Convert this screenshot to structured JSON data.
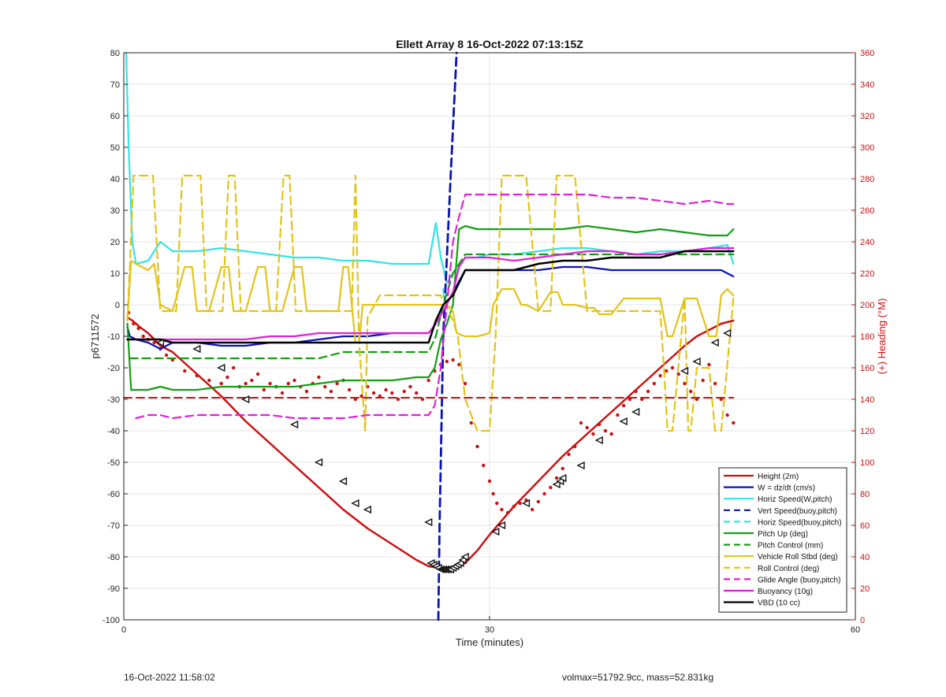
{
  "chart_data": {
    "type": "line",
    "title": "Ellett Array 8 16-Oct-2022 07:13:15Z",
    "xlabel": "Time (minutes)",
    "ylabel_left": "p6711572",
    "ylabel_right": "(+) Heading (°M)",
    "xlim": [
      0,
      60
    ],
    "ylim_left": [
      -100,
      80
    ],
    "ylim_right": [
      0,
      360
    ],
    "xticks": [
      0,
      30,
      60
    ],
    "yticks_left": [
      -100,
      -90,
      -80,
      -70,
      -60,
      -50,
      -40,
      -30,
      -20,
      -10,
      0,
      10,
      20,
      30,
      40,
      50,
      60,
      70,
      80
    ],
    "yticks_right": [
      0,
      20,
      40,
      60,
      80,
      100,
      120,
      140,
      160,
      180,
      200,
      220,
      240,
      260,
      280,
      300,
      320,
      340,
      360
    ],
    "grid": true,
    "legend_position": "bottom-right",
    "colors": {
      "red": "#cc1111",
      "blue": "#0a14b4",
      "cyan": "#33e4e4",
      "green": "#12a012",
      "yellow": "#e2c418",
      "magenta": "#e020d8",
      "black": "#000000"
    },
    "series": [
      {
        "name": "Height (2m)",
        "color": "red",
        "dash": false,
        "width": 2.5,
        "x": [
          0.3,
          0.7,
          1.3,
          2,
          3,
          4,
          6,
          8,
          10,
          12,
          14,
          16,
          18,
          20,
          22,
          24,
          25,
          25.8,
          26.5,
          27.2,
          28,
          29,
          30,
          32,
          34,
          36,
          38,
          40,
          42,
          44,
          46,
          47,
          48,
          49,
          50
        ],
        "y": [
          -4,
          -5,
          -7,
          -9,
          -13,
          -15,
          -22,
          -29,
          -37,
          -44,
          -51,
          -58,
          -65,
          -71,
          -76,
          -81,
          -83,
          -83.5,
          -84,
          -83.5,
          -82,
          -78,
          -73,
          -64,
          -56,
          -48,
          -41,
          -34,
          -27,
          -20,
          -13,
          -10,
          -8,
          -6,
          -5
        ]
      },
      {
        "name": "W = dz/dt (cm/s)",
        "color": "blue",
        "dash": false,
        "width": 2.2,
        "x": [
          0.3,
          0.5,
          1,
          2,
          3,
          4,
          6,
          8,
          10,
          12,
          14,
          16,
          18,
          20,
          22,
          24,
          25,
          25.6,
          26.2,
          27,
          28,
          29,
          30,
          32,
          34,
          36,
          38,
          40,
          42,
          44,
          46,
          48,
          49,
          50
        ],
        "y": [
          -7,
          -10,
          -11,
          -12,
          -14,
          -12,
          -12,
          -13,
          -13,
          -12,
          -12,
          -11,
          -10,
          -10,
          -9,
          -9,
          -9,
          -6,
          -2,
          4,
          11,
          11,
          11,
          11,
          11,
          12,
          12,
          11,
          11,
          11,
          11,
          11,
          11,
          9
        ]
      },
      {
        "name": "Horiz Speed(W,pitch)",
        "color": "cyan",
        "dash": false,
        "width": 2.2,
        "x": [
          0.2,
          0.4,
          0.7,
          1,
          2,
          3,
          4,
          6,
          8,
          10,
          12,
          14,
          16,
          18,
          20,
          22,
          24,
          25,
          25.6,
          26,
          26.5,
          27,
          27.5,
          28,
          29,
          30,
          32,
          34,
          36,
          38,
          40,
          42,
          44,
          46,
          48,
          49.5,
          50
        ],
        "y": [
          80,
          50,
          20,
          13,
          14,
          20,
          17,
          17,
          18,
          17,
          16,
          15,
          15,
          14,
          14,
          13,
          13,
          13,
          26,
          15,
          7,
          10,
          12,
          15,
          15,
          16,
          16,
          17,
          18,
          18,
          17,
          16,
          17,
          17,
          18,
          19,
          13
        ]
      },
      {
        "name": "Vert Speed(buoy,pitch)",
        "color": "blue",
        "dash": true,
        "width": 2.8,
        "x": [
          25.8,
          25.9,
          26.2,
          26.8,
          27.3
        ],
        "y": [
          -100,
          -70,
          -10,
          40,
          80
        ]
      },
      {
        "name": "Horiz Speed(buoy,pitch)",
        "color": "cyan",
        "dash": true,
        "width": 2,
        "x": [
          26.2,
          26.3
        ],
        "y": [
          5,
          0
        ]
      },
      {
        "name": "Pitch Up (deg)",
        "color": "green",
        "dash": false,
        "width": 2.2,
        "x": [
          0.3,
          0.6,
          1,
          2,
          3,
          4,
          6,
          8,
          10,
          12,
          14,
          16,
          18,
          20,
          22,
          24,
          25,
          25.5,
          26,
          26.5,
          27,
          27.5,
          28,
          29,
          30,
          32,
          34,
          36,
          38,
          40,
          42,
          44,
          46,
          48,
          49.5,
          50
        ],
        "y": [
          -6,
          -27,
          -27,
          -27,
          -26,
          -27,
          -27,
          -26,
          -26,
          -26,
          -26,
          -25,
          -24,
          -24,
          -24,
          -23,
          -23,
          -20,
          -11,
          -6,
          0,
          24,
          25,
          24,
          24,
          24,
          24,
          24,
          25,
          24,
          23,
          24,
          23,
          22,
          22,
          24
        ]
      },
      {
        "name": "Pitch Control (mm)",
        "color": "green",
        "dash": true,
        "width": 2.2,
        "x": [
          0.5,
          2,
          4,
          6,
          8,
          10,
          12,
          14,
          16,
          17,
          18,
          20,
          22,
          24,
          25,
          25.6,
          26.2,
          27,
          28,
          30,
          32,
          34,
          36,
          38,
          40,
          42,
          44,
          46,
          48,
          50
        ],
        "y": [
          -17,
          -17,
          -17,
          -17,
          -17,
          -17,
          -17,
          -17,
          -17,
          -16,
          -15,
          -15,
          -15,
          -15,
          -15,
          -10,
          0,
          10,
          16,
          16,
          16,
          16,
          16,
          16,
          16,
          16,
          16,
          16,
          16,
          16
        ]
      },
      {
        "name": "Vehicle Roll Stbd (deg)",
        "color": "yellow",
        "dash": false,
        "width": 2.2,
        "x": [
          0.3,
          0.6,
          1,
          2,
          2.5,
          3,
          4,
          5,
          5.6,
          6,
          7,
          8,
          8.6,
          9,
          10,
          11,
          11.6,
          12,
          13,
          14,
          14.6,
          15,
          16,
          17,
          17.6,
          18,
          18.4,
          19,
          19.3,
          19.6,
          20,
          21,
          22,
          23,
          24,
          25,
          26,
          26.5,
          27,
          27.3,
          28,
          29,
          30,
          30.3,
          31,
          32,
          32.6,
          33,
          34,
          35,
          35.6,
          36,
          37,
          38,
          38.6,
          39,
          40,
          41,
          41.6,
          42,
          43,
          44,
          44.6,
          45,
          46,
          47,
          48,
          48.6,
          49,
          49.5,
          50
        ],
        "y": [
          -5,
          14,
          13,
          11,
          13,
          0,
          -2,
          12,
          12,
          -2,
          -2,
          12,
          12,
          -2,
          -2,
          12,
          12,
          -2,
          -2,
          12,
          12,
          -2,
          -2,
          -2,
          -2,
          12,
          12,
          -12,
          -12,
          0,
          0,
          0,
          0,
          0,
          0,
          0,
          0,
          0,
          -2,
          -9,
          -10,
          -10,
          -9,
          0,
          5,
          5,
          0,
          0,
          -2,
          4,
          4,
          0,
          0,
          -1,
          -1,
          -3,
          -3,
          2,
          2,
          2,
          2,
          2,
          -10,
          -10,
          2,
          2,
          -10,
          -10,
          3,
          5,
          3
        ]
      },
      {
        "name": "Roll Control (deg)",
        "color": "yellow",
        "dash": true,
        "width": 2.2,
        "x": [
          0.3,
          0.5,
          0.8,
          1.1,
          1.4,
          2.4,
          3,
          4.3,
          4.8,
          5.3,
          6.3,
          6.8,
          7.3,
          8.1,
          8.6,
          9.1,
          9.6,
          10.2,
          11,
          12,
          12.5,
          13.1,
          13.6,
          14.1,
          14.6,
          15.6,
          16.2,
          17.2,
          17.8,
          18.1,
          18.4,
          18.7,
          19,
          19.3,
          19.8,
          20,
          21,
          22,
          23,
          24,
          25,
          26,
          27,
          27.4,
          28,
          29,
          30,
          30.5,
          31,
          32,
          33,
          34,
          35,
          35.5,
          36,
          37,
          38,
          39,
          40,
          41,
          42,
          43,
          44,
          44.3,
          44.6,
          45,
          46,
          46.3,
          46.5,
          47,
          48,
          48.5,
          49,
          50
        ],
        "y": [
          -5,
          12,
          41,
          41,
          41,
          41,
          -2,
          -2,
          41,
          41,
          41,
          -2,
          -2,
          -2,
          41,
          41,
          -2,
          -2,
          -2,
          -2,
          -2,
          41,
          41,
          -2,
          -2,
          -2,
          -2,
          -2,
          -2,
          -2,
          -2,
          -2,
          41,
          -12,
          -40,
          -4,
          3,
          3,
          3,
          3,
          3,
          3,
          -5,
          -10,
          -30,
          -40,
          -40,
          -10,
          41,
          41,
          41,
          -2,
          -2,
          41,
          41,
          41,
          -2,
          -2,
          -2,
          -2,
          -2,
          -2,
          -2,
          -20,
          -40,
          -40,
          2,
          -40,
          -40,
          -20,
          -20,
          -40,
          -40,
          2
        ]
      },
      {
        "name": "Glide Angle (buoy,pitch)",
        "color": "magenta",
        "dash": true,
        "width": 2.2,
        "x": [
          1,
          2,
          3,
          4,
          6,
          8,
          10,
          12,
          14,
          16,
          18,
          20,
          22,
          24,
          25,
          25.5,
          26,
          26.5,
          27,
          27.5,
          28,
          30,
          32,
          34,
          36,
          38,
          40,
          42,
          44,
          46,
          48,
          49.5,
          50
        ],
        "y": [
          -36,
          -35,
          -35,
          -36,
          -35,
          -35,
          -35,
          -35,
          -36,
          -36,
          -36,
          -35,
          -35,
          -35,
          -35,
          -32,
          -20,
          0,
          20,
          28,
          35,
          35,
          35,
          35,
          35,
          35,
          34,
          34,
          33,
          32,
          33,
          32,
          32
        ]
      },
      {
        "name": "Buoyancy (10g)",
        "color": "magenta",
        "dash": false,
        "width": 2.2,
        "x": [
          0.3,
          1,
          2,
          3,
          4,
          6,
          8,
          10,
          12,
          14,
          16,
          18,
          20,
          22,
          24,
          25,
          25.6,
          26.2,
          27,
          27.5,
          28,
          30,
          32,
          34,
          36,
          38,
          40,
          42,
          44,
          46,
          48,
          50
        ],
        "y": [
          -11,
          -11,
          -11,
          -11,
          -11,
          -11,
          -11,
          -11,
          -10,
          -10,
          -9,
          -9,
          -9,
          -9,
          -9,
          -9,
          -6,
          -2,
          4,
          12,
          15,
          15,
          14,
          15,
          16,
          17,
          17,
          16,
          16,
          17,
          18,
          18
        ]
      },
      {
        "name": "VBD (10 cc)",
        "color": "black",
        "dash": false,
        "width": 2.5,
        "x": [
          0.3,
          1,
          2,
          3,
          4,
          6,
          8,
          10,
          12,
          14,
          16,
          18,
          20,
          22,
          24,
          25,
          25.6,
          26.2,
          27,
          28,
          29,
          30,
          32,
          34,
          36,
          38,
          40,
          42,
          44,
          46,
          48,
          50
        ],
        "y": [
          -11,
          -11,
          -11,
          -11,
          -12,
          -12,
          -12,
          -12,
          -12,
          -12,
          -12,
          -12,
          -12,
          -12,
          -12,
          -12,
          -5,
          0,
          3,
          11,
          11,
          11,
          11,
          13,
          14,
          14,
          15,
          15,
          15,
          17,
          17,
          17
        ]
      },
      {
        "color": "red",
        "dash": true,
        "width": 2,
        "x": [
          0,
          50
        ],
        "y": [
          -29.5,
          -29.5
        ]
      }
    ],
    "markers": {
      "color": "red",
      "x": [
        3,
        6,
        8,
        10,
        14,
        16,
        18,
        19,
        20,
        25,
        25.2,
        25.4,
        25.6,
        25.8,
        26,
        26.2,
        26.4,
        26.6,
        26.8,
        27,
        27.2,
        27.4,
        27.6,
        27.8,
        28,
        30.5,
        31,
        33,
        35.5,
        35.8,
        36,
        37.5,
        39,
        41,
        42,
        46,
        47,
        48.5,
        49.5
      ],
      "y": [
        -12,
        -14,
        -20,
        -30,
        -38,
        -50,
        -56,
        -63,
        -65,
        -69,
        -82,
        -82.5,
        -83,
        -83.5,
        -84,
        -84,
        -84,
        -84,
        -84,
        -83.5,
        -83,
        -82.5,
        -82,
        -81,
        -80,
        -72,
        -70,
        -63,
        -57,
        -56,
        -55,
        -51,
        -43,
        -37,
        -34,
        -21,
        -18,
        -12,
        -9
      ]
    },
    "heading": {
      "name": "(+) Heading (°M)",
      "color": "red",
      "x": [
        0.4,
        0.8,
        1.2,
        1.6,
        2,
        2.5,
        3,
        3.5,
        4,
        5,
        6,
        7,
        8,
        8.5,
        9,
        9.5,
        10,
        10.5,
        11,
        11.5,
        12,
        12.5,
        13,
        13.5,
        14,
        14.5,
        15,
        15.5,
        16,
        16.5,
        17,
        17.5,
        18,
        18.5,
        19,
        19.5,
        20,
        20.5,
        21,
        21.5,
        22,
        22.5,
        23,
        23.5,
        24,
        24.5,
        25,
        25.5,
        26,
        26.5,
        27,
        27.5,
        28,
        28.5,
        29,
        29.5,
        30,
        30.3,
        30.6,
        31,
        31.5,
        32,
        32.5,
        33,
        33.5,
        34,
        34.5,
        35,
        35.5,
        36,
        36.5,
        37,
        37.5,
        38,
        38.5,
        39,
        39.5,
        40,
        40.5,
        41,
        41.5,
        42,
        42.5,
        43,
        43.5,
        44,
        44.5,
        45,
        45.5,
        46,
        46.5,
        47,
        47.5,
        48,
        48.5,
        49,
        49.5,
        50
      ],
      "y": [
        195,
        188,
        185,
        180,
        178,
        176,
        172,
        168,
        165,
        158,
        155,
        152,
        150,
        154,
        160,
        148,
        150,
        152,
        156,
        146,
        150,
        148,
        144,
        150,
        152,
        148,
        145,
        150,
        154,
        148,
        145,
        150,
        152,
        146,
        140,
        142,
        148,
        144,
        142,
        146,
        144,
        140,
        145,
        148,
        144,
        140,
        152,
        158,
        162,
        164,
        165,
        162,
        150,
        125,
        110,
        98,
        88,
        80,
        74,
        70,
        68,
        72,
        74,
        76,
        70,
        75,
        80,
        84,
        90,
        96,
        105,
        110,
        125,
        122,
        118,
        124,
        120,
        118,
        130,
        136,
        140,
        145,
        140,
        145,
        150,
        155,
        158,
        160,
        156,
        150,
        145,
        140,
        152,
        162,
        150,
        140,
        130,
        125
      ]
    },
    "footer": {
      "timestamp": "16-Oct-2022 11:58:02",
      "summary": "volmax=51792.9cc, mass=52.831kg"
    }
  }
}
